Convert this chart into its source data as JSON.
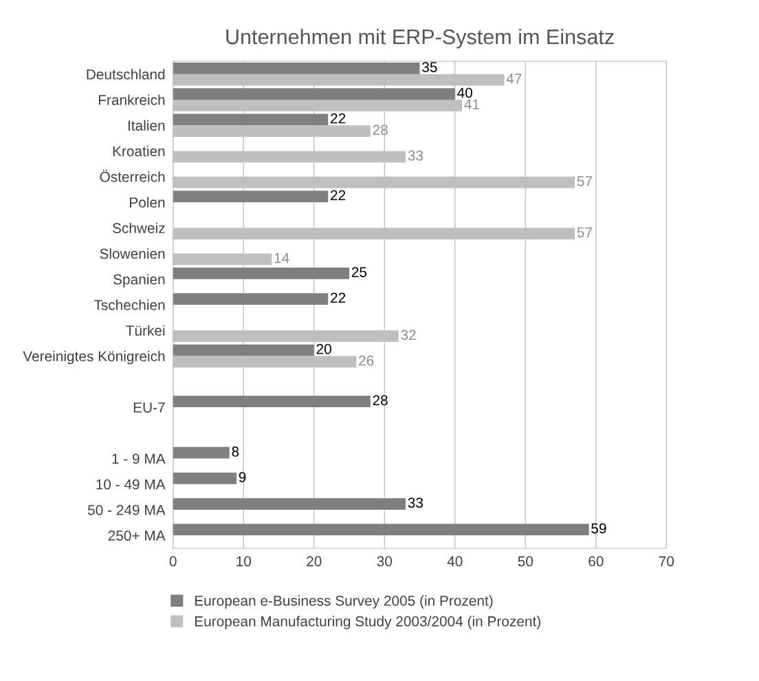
{
  "chart_data": {
    "type": "bar",
    "orientation": "horizontal",
    "title": "Unternehmen mit ERP-System im Einsatz",
    "categories": [
      "Deutschland",
      "Frankreich",
      "Italien",
      "Kroatien",
      "Österreich",
      "Polen",
      "Schweiz",
      "Slowenien",
      "Spanien",
      "Tschechien",
      "Türkei",
      "Vereinigtes Königreich",
      null,
      "EU-7",
      null,
      "1 - 9 MA",
      "10 - 49 MA",
      "50 - 249 MA",
      "250+ MA"
    ],
    "series": [
      {
        "name": "European e-Business Survey 2005 (in Prozent)",
        "color": "#7f7f7f",
        "values": [
          35,
          40,
          22,
          null,
          null,
          22,
          null,
          null,
          25,
          22,
          null,
          20,
          null,
          28,
          null,
          8,
          9,
          33,
          59
        ]
      },
      {
        "name": "European Manufacturing Study 2003/2004 (in Prozent)",
        "color": "#bfbfbf",
        "values": [
          47,
          41,
          28,
          33,
          57,
          null,
          57,
          14,
          null,
          null,
          32,
          26,
          null,
          null,
          null,
          null,
          null,
          null,
          null
        ]
      }
    ],
    "xlim": [
      0,
      70
    ],
    "xticks": [
      0,
      10,
      20,
      30,
      40,
      50,
      60,
      70
    ],
    "grid": "x",
    "legend": "bottom",
    "data_labels": true
  }
}
